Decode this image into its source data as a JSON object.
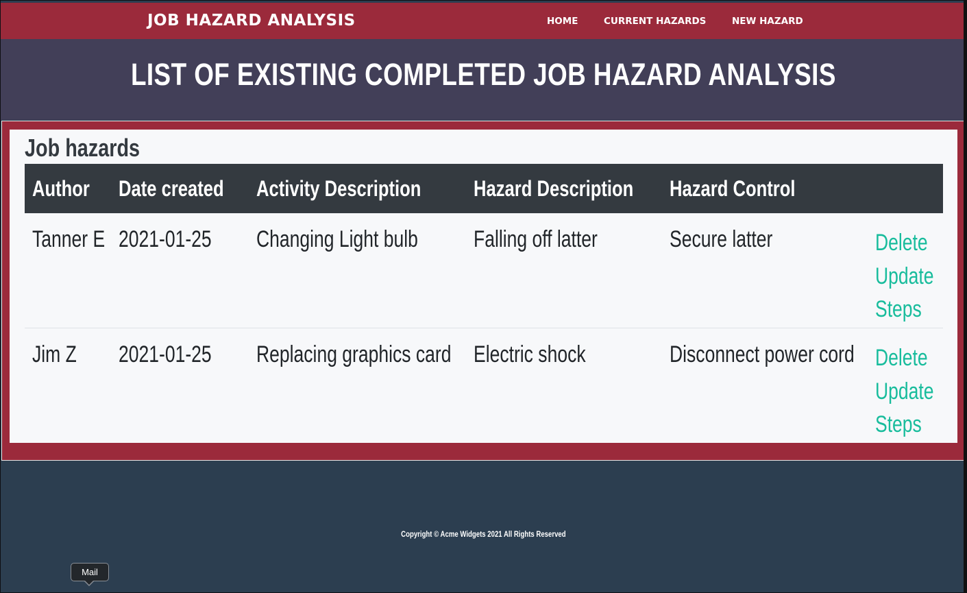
{
  "navbar": {
    "brand": "JOB HAZARD ANALYSIS",
    "links": [
      {
        "label": "HOME"
      },
      {
        "label": "CURRENT HAZARDS"
      },
      {
        "label": "NEW HAZARD"
      }
    ]
  },
  "header": {
    "title": "LIST OF EXISTING COMPLETED JOB HAZARD ANALYSIS"
  },
  "main": {
    "heading": "Job hazards",
    "columns": [
      "Author",
      "Date created",
      "Activity Description",
      "Hazard Description",
      "Hazard Control"
    ],
    "rows": [
      {
        "author": "Tanner E",
        "date": "2021-01-25",
        "activity": "Changing Light bulb",
        "hazard": "Falling off latter",
        "control": "Secure latter",
        "actions": [
          "Delete",
          "Update",
          "Steps"
        ]
      },
      {
        "author": "Jim Z",
        "date": "2021-01-25",
        "activity": "Replacing graphics card",
        "hazard": "Electric shock",
        "control": "Disconnect power cord",
        "actions": [
          "Delete",
          "Update",
          "Steps"
        ]
      }
    ]
  },
  "footer": {
    "copyright": "Copyright © Acme Widgets 2021 All Rights Reserved"
  },
  "tooltip": {
    "text": "Mail"
  },
  "colors": {
    "navbar": "#9b2a3b",
    "header": "#423f58",
    "footer": "#2c3e50",
    "table_head": "#343a40",
    "action_link": "#18bc9c"
  }
}
